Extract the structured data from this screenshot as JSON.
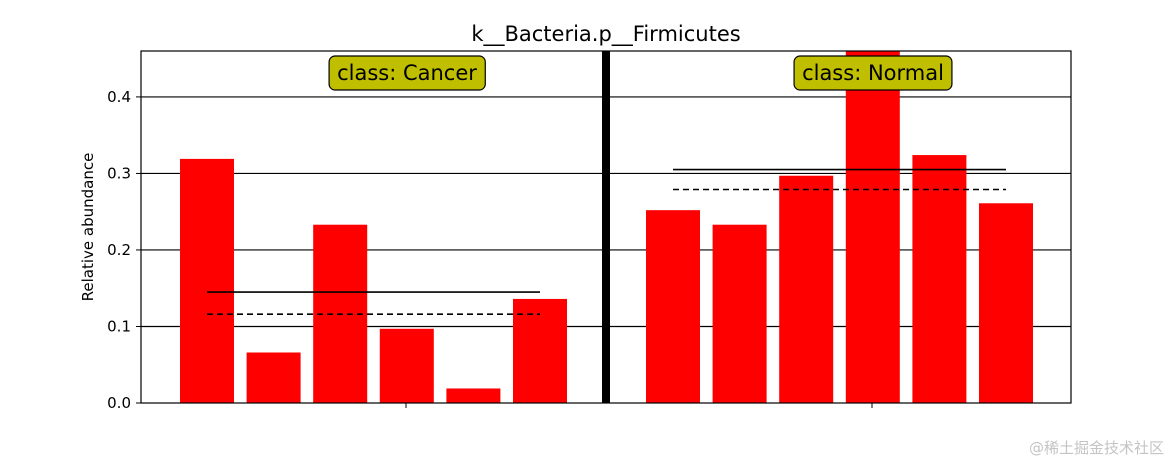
{
  "chart_data": {
    "type": "bar",
    "title": "k__Bacteria.p__Firmicutes",
    "ylabel": "Relative abundance",
    "xlabel": "",
    "ylim": [
      0,
      0.46
    ],
    "yticks": [
      "0.0",
      "0.1",
      "0.2",
      "0.3",
      "0.4"
    ],
    "grid": "horizontal",
    "bar_color": "#ff0000",
    "label_box_color": "#bfbf00",
    "groups": [
      {
        "label": "class: Cancer",
        "values": [
          0.319,
          0.066,
          0.233,
          0.097,
          0.019,
          0.136
        ],
        "mean": 0.145,
        "median": 0.116
      },
      {
        "label": "class: Normal",
        "values": [
          0.252,
          0.233,
          0.297,
          0.46,
          0.324,
          0.261
        ],
        "mean": 0.305,
        "median": 0.279
      }
    ]
  },
  "watermark": "@稀土掘金技术社区"
}
